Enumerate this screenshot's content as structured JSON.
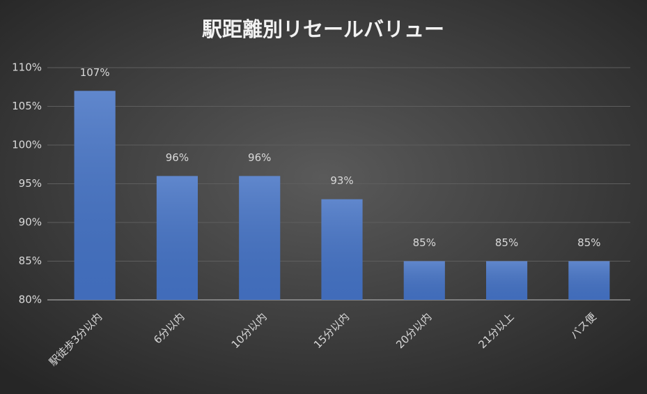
{
  "chart_data": {
    "type": "bar",
    "title": "駅距離別リセールバリュー",
    "categories": [
      "駅徒歩3分以内",
      "6分以内",
      "10分以内",
      "15分以内",
      "20分以内",
      "21分以上",
      "バス便"
    ],
    "values": [
      107,
      96,
      96,
      93,
      85,
      85,
      85
    ],
    "value_labels": [
      "107%",
      "96%",
      "96%",
      "93%",
      "85%",
      "85%",
      "85%"
    ],
    "color": "#4472c4",
    "ylim": [
      80,
      110
    ],
    "yticks": [
      {
        "value": 80,
        "label": "80%"
      },
      {
        "value": 85,
        "label": "85%"
      },
      {
        "value": 90,
        "label": "90%"
      },
      {
        "value": 95,
        "label": "95%"
      },
      {
        "value": 100,
        "label": "100%"
      },
      {
        "value": 105,
        "label": "105%"
      },
      {
        "value": 110,
        "label": "110%"
      }
    ],
    "grid": true
  }
}
